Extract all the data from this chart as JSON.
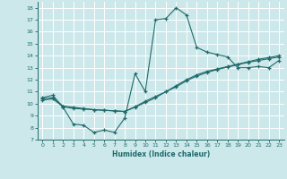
{
  "xlabel": "Humidex (Indice chaleur)",
  "bg_color": "#cde8ea",
  "grid_color": "#ffffff",
  "line_color": "#1e6b6b",
  "xlim": [
    -0.5,
    23.5
  ],
  "ylim": [
    7,
    18.5
  ],
  "xticks": [
    0,
    1,
    2,
    3,
    4,
    5,
    6,
    7,
    8,
    9,
    10,
    11,
    12,
    13,
    14,
    15,
    16,
    17,
    18,
    19,
    20,
    21,
    22,
    23
  ],
  "yticks": [
    7,
    8,
    9,
    10,
    11,
    12,
    13,
    14,
    15,
    16,
    17,
    18
  ],
  "line1_x": [
    0,
    1,
    2,
    3,
    4,
    5,
    6,
    7,
    8,
    9,
    10,
    11,
    12,
    13,
    14,
    15,
    16,
    17,
    18,
    19,
    20,
    21,
    22,
    23
  ],
  "line1_y": [
    10.5,
    10.7,
    9.7,
    8.3,
    8.2,
    7.6,
    7.8,
    7.6,
    8.8,
    12.5,
    11.0,
    17.0,
    17.1,
    18.0,
    17.4,
    14.7,
    14.3,
    14.1,
    13.9,
    13.0,
    13.0,
    13.1,
    13.0,
    13.6
  ],
  "line2_x": [
    0,
    1,
    2,
    3,
    4,
    5,
    6,
    7,
    8,
    9,
    10,
    11,
    12,
    13,
    14,
    15,
    16,
    17,
    18,
    19,
    20,
    21,
    22,
    23
  ],
  "line2_y": [
    10.4,
    10.5,
    9.8,
    9.7,
    9.6,
    9.5,
    9.45,
    9.4,
    9.35,
    9.75,
    10.2,
    10.6,
    11.0,
    11.5,
    12.0,
    12.4,
    12.7,
    12.9,
    13.1,
    13.3,
    13.5,
    13.7,
    13.85,
    14.0
  ],
  "line3_x": [
    0,
    1,
    2,
    3,
    4,
    5,
    6,
    7,
    8,
    9,
    10,
    11,
    12,
    13,
    14,
    15,
    16,
    17,
    18,
    19,
    20,
    21,
    22,
    23
  ],
  "line3_y": [
    10.3,
    10.4,
    9.75,
    9.6,
    9.55,
    9.5,
    9.45,
    9.4,
    9.35,
    9.7,
    10.1,
    10.5,
    11.0,
    11.4,
    11.9,
    12.3,
    12.6,
    12.85,
    13.05,
    13.25,
    13.45,
    13.6,
    13.75,
    13.9
  ]
}
